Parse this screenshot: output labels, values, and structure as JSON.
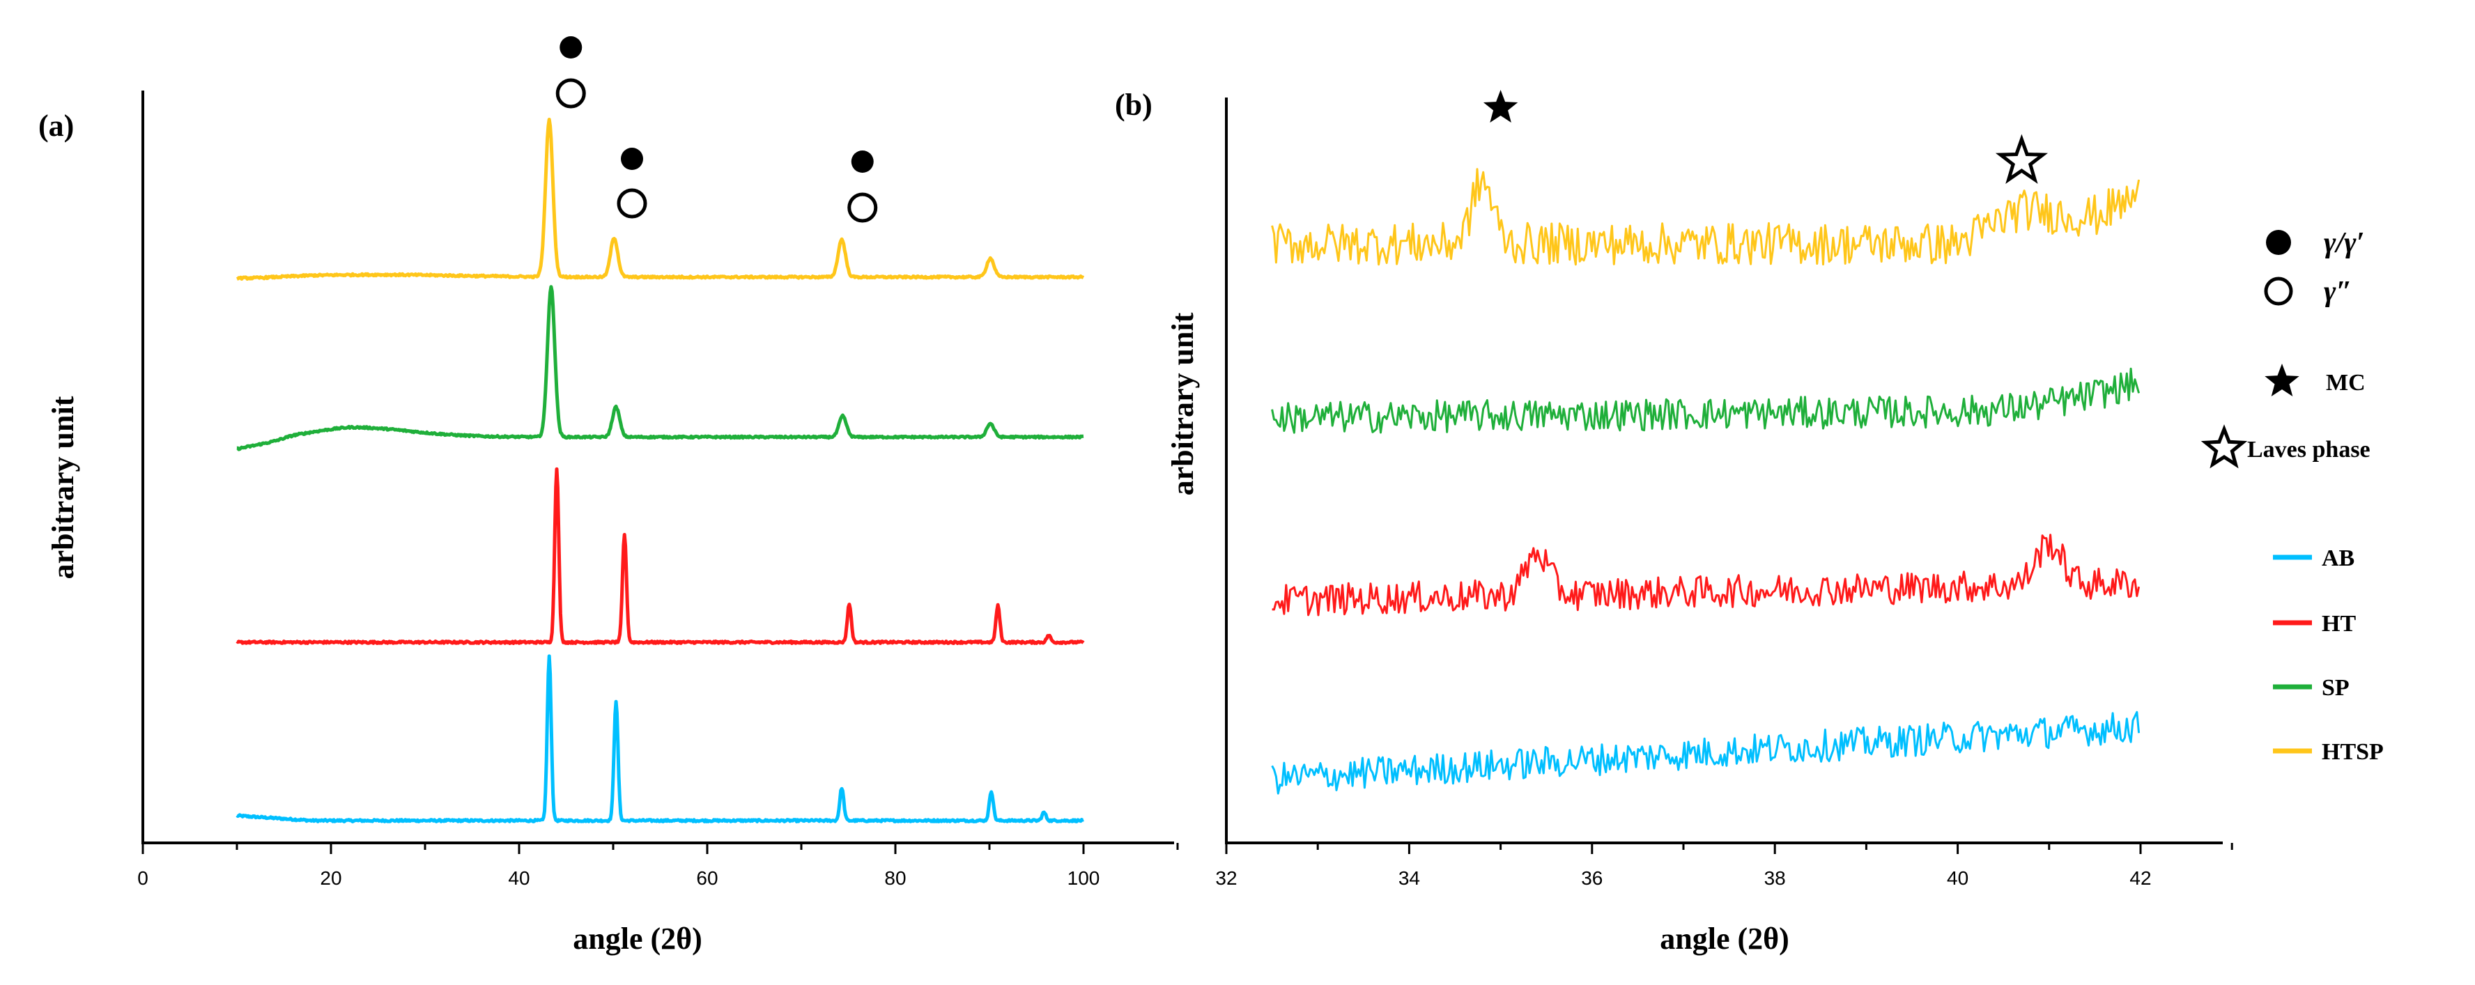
{
  "chart_data": [
    {
      "panel": "(a)",
      "type": "line",
      "xlabel": "angle (2θ)",
      "ylabel": "arbitrary unit",
      "xlim": [
        0,
        110
      ],
      "xticks": [
        0,
        20,
        40,
        60,
        80,
        100
      ],
      "y_ticks_shown": false,
      "baseline_offsets": {
        "AB": 0,
        "HT": 1,
        "SP": 2,
        "HTSP": 3
      },
      "peak_markers": [
        {
          "x": 45.5,
          "symbols": [
            "γ/γ′",
            "γ″"
          ]
        },
        {
          "x": 52.0,
          "symbols": [
            "γ/γ′",
            "γ″"
          ]
        },
        {
          "x": 76.5,
          "symbols": [
            "γ/γ′",
            "γ″"
          ]
        }
      ],
      "series": [
        {
          "name": "AB",
          "color": "#00BFFF",
          "x_range": [
            10,
            100
          ],
          "peaks": [
            {
              "x": 43.2,
              "height": 1.0
            },
            {
              "x": 50.3,
              "height": 0.73
            },
            {
              "x": 74.3,
              "height": 0.2
            },
            {
              "x": 90.2,
              "height": 0.18
            },
            {
              "x": 95.8,
              "height": 0.05
            }
          ]
        },
        {
          "name": "HT",
          "color": "#FF1A1A",
          "x_range": [
            10,
            100
          ],
          "peaks": [
            {
              "x": 44.0,
              "height": 1.0
            },
            {
              "x": 51.2,
              "height": 0.62
            },
            {
              "x": 75.1,
              "height": 0.22
            },
            {
              "x": 90.9,
              "height": 0.21
            },
            {
              "x": 96.3,
              "height": 0.04
            }
          ]
        },
        {
          "name": "SP",
          "color": "#1FAF3A",
          "x_range": [
            10,
            100
          ],
          "peaks": [
            {
              "x": 43.4,
              "height": 1.0
            },
            {
              "x": 50.3,
              "height": 0.2
            },
            {
              "x": 74.4,
              "height": 0.14
            },
            {
              "x": 90.1,
              "height": 0.09
            }
          ]
        },
        {
          "name": "HTSP",
          "color": "#FFC61A",
          "x_range": [
            10,
            100
          ],
          "peaks": [
            {
              "x": 43.2,
              "height": 1.0
            },
            {
              "x": 50.1,
              "height": 0.25
            },
            {
              "x": 74.3,
              "height": 0.24
            },
            {
              "x": 90.1,
              "height": 0.12
            }
          ]
        }
      ]
    },
    {
      "panel": "(b)",
      "type": "line",
      "xlabel": "angle (2θ)",
      "ylabel": "arbitrary unit",
      "xlim": [
        32,
        43
      ],
      "xticks": [
        32,
        34,
        36,
        38,
        40,
        42
      ],
      "y_ticks_shown": false,
      "peak_markers": [
        {
          "x": 35.0,
          "symbol": "MC"
        },
        {
          "x": 40.7,
          "symbol": "Laves phase"
        }
      ],
      "series": [
        {
          "name": "AB",
          "color": "#00BFFF",
          "x_range": [
            32.5,
            42
          ],
          "features": "noisy, rising baseline"
        },
        {
          "name": "HT",
          "color": "#FF1A1A",
          "x_range": [
            32.5,
            42
          ],
          "peaks": [
            {
              "x": 35.4
            },
            {
              "x": 41.0
            }
          ]
        },
        {
          "name": "SP",
          "color": "#1FAF3A",
          "x_range": [
            32.5,
            42
          ],
          "features": "noisy, slightly rising at high angle"
        },
        {
          "name": "HTSP",
          "color": "#FFC61A",
          "x_range": [
            32.5,
            42
          ],
          "peaks": [
            {
              "x": 34.8
            },
            {
              "x": 40.8
            }
          ]
        }
      ]
    }
  ],
  "figure": {
    "panel_a_label": "(a)",
    "panel_b_label": "(b)",
    "xlabel_a": "angle (2θ)",
    "xlabel_b": "angle (2θ)",
    "ylabel_a": "arbitrary unit",
    "ylabel_b": "arbitrary unit",
    "legend": {
      "symbols": [
        {
          "marker": "filled-circle",
          "label": "γ/γ′"
        },
        {
          "marker": "open-circle",
          "label": "γ″"
        },
        {
          "marker": "filled-star",
          "label": "MC"
        },
        {
          "marker": "open-star",
          "label": "Laves phase"
        }
      ],
      "series": [
        {
          "label": "AB",
          "color": "#00BFFF"
        },
        {
          "label": "HT",
          "color": "#FF1A1A"
        },
        {
          "label": "SP",
          "color": "#1FAF3A"
        },
        {
          "label": "HTSP",
          "color": "#FFC61A"
        }
      ]
    }
  }
}
